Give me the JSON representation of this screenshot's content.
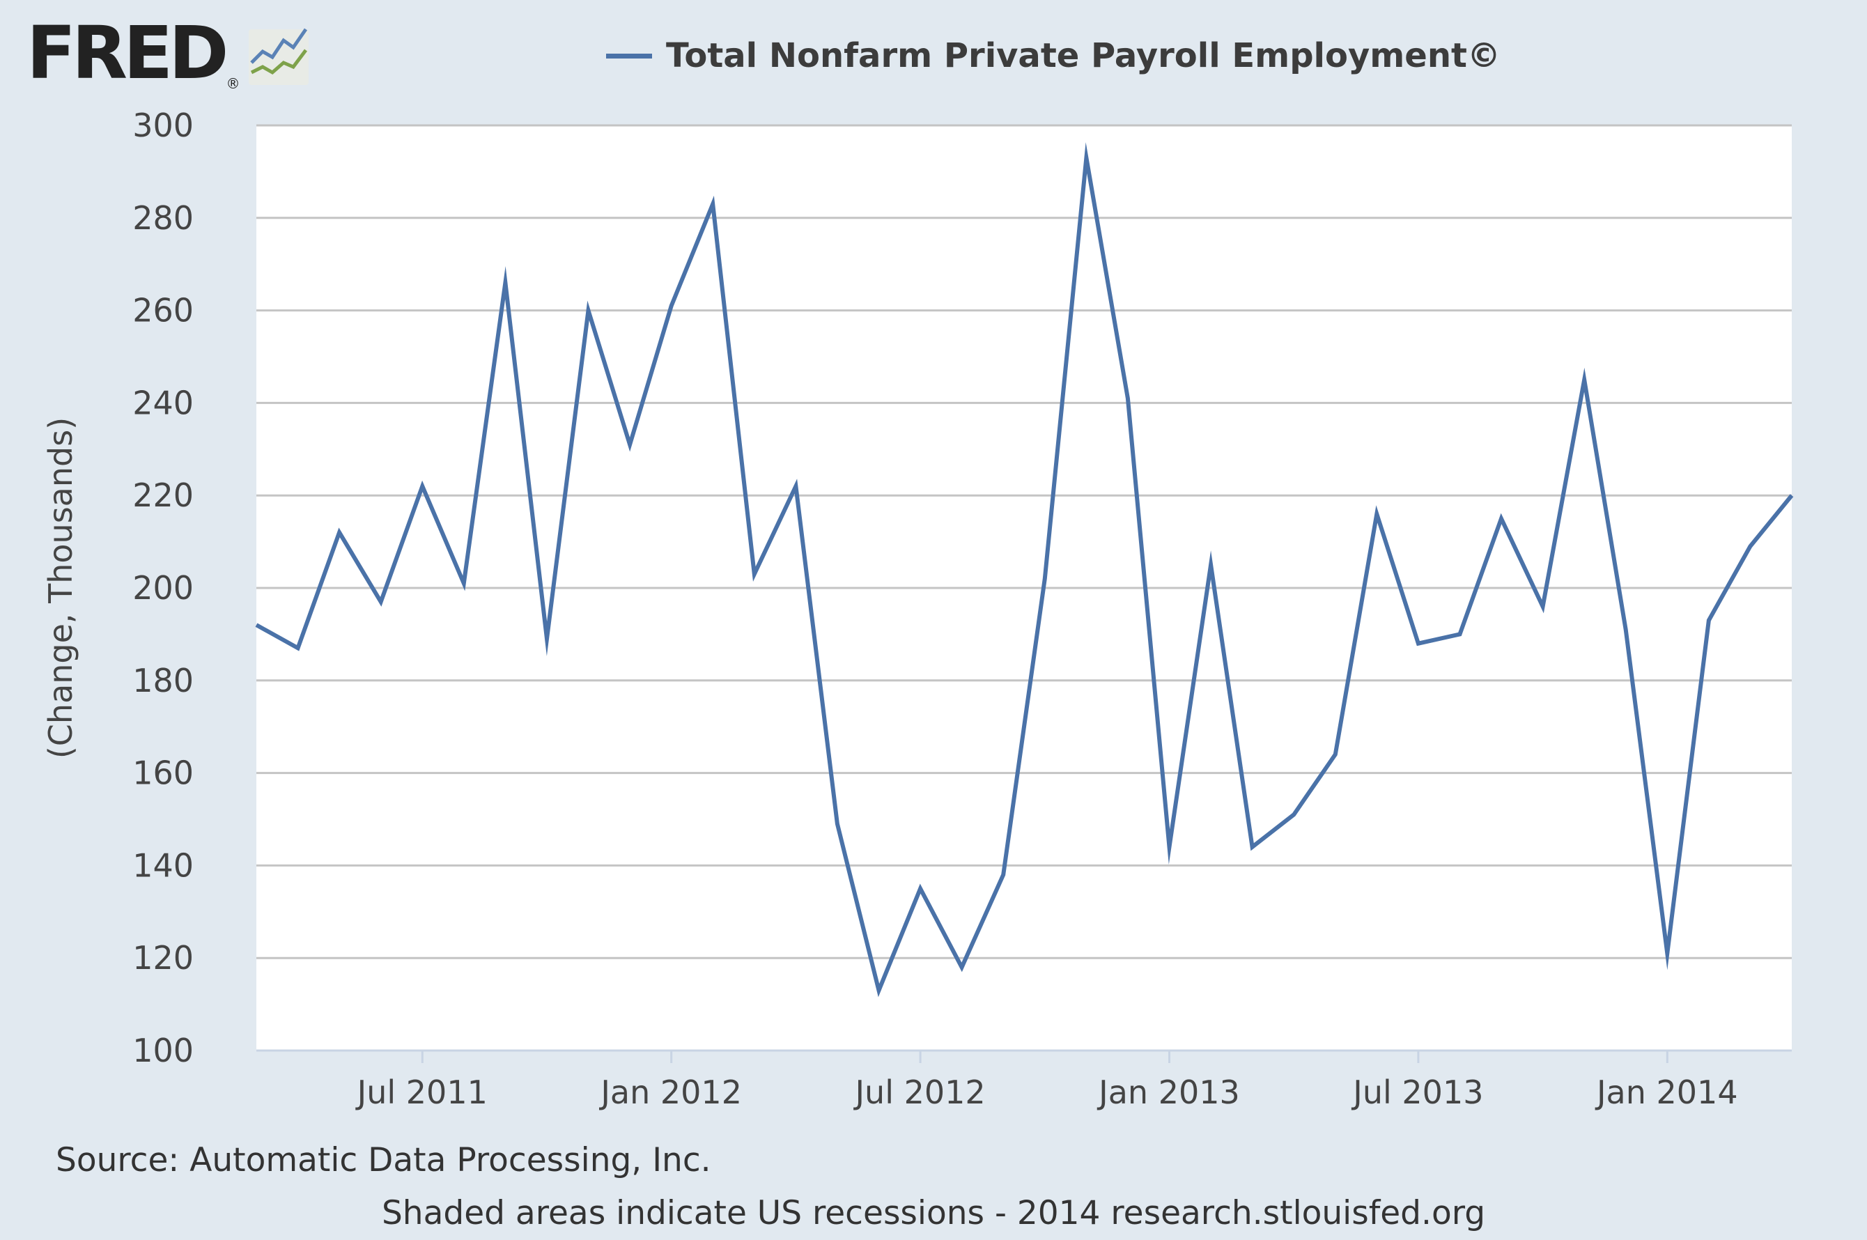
{
  "logo": {
    "text": "FRED",
    "reg": "®",
    "icon": "fred-chart-logo-icon"
  },
  "legend": {
    "label": "Total Nonfarm Private Payroll Employment©",
    "color": "#4a72a8"
  },
  "source": "Source: Automatic Data Processing, Inc.",
  "note": "Shaded areas indicate US recessions - 2014 research.stlouisfed.org",
  "chart_data": {
    "type": "line",
    "title": "Total Nonfarm Private Payroll Employment©",
    "xlabel": "",
    "ylabel": "(Change, Thousands)",
    "ylim": [
      100,
      300
    ],
    "yticks": [
      100,
      120,
      140,
      160,
      180,
      200,
      220,
      240,
      260,
      280,
      300
    ],
    "xticks": [
      "Jul 2011",
      "Jan 2012",
      "Jul 2012",
      "Jan 2013",
      "Jul 2013",
      "Jan 2014"
    ],
    "x_tick_months": [
      "2011-07",
      "2012-01",
      "2012-07",
      "2013-01",
      "2013-07",
      "2014-01"
    ],
    "grid": true,
    "legend_position": "top",
    "x": [
      "2011-03",
      "2011-04",
      "2011-05",
      "2011-06",
      "2011-07",
      "2011-08",
      "2011-09",
      "2011-10",
      "2011-11",
      "2011-12",
      "2012-01",
      "2012-02",
      "2012-03",
      "2012-04",
      "2012-05",
      "2012-06",
      "2012-07",
      "2012-08",
      "2012-09",
      "2012-10",
      "2012-11",
      "2012-12",
      "2013-01",
      "2013-02",
      "2013-03",
      "2013-04",
      "2013-05",
      "2013-06",
      "2013-07",
      "2013-08",
      "2013-09",
      "2013-10",
      "2013-11",
      "2013-12",
      "2014-01",
      "2014-02",
      "2014-03",
      "2014-04"
    ],
    "series": [
      {
        "name": "Total Nonfarm Private Payroll Employment©",
        "color": "#4a72a8",
        "values": [
          192,
          187,
          212,
          197,
          222,
          201,
          266,
          189,
          260,
          231,
          261,
          283,
          203,
          222,
          149,
          113,
          135,
          118,
          138,
          202,
          293,
          241,
          144,
          205,
          144,
          151,
          164,
          216,
          188,
          190,
          215,
          196,
          245,
          191,
          121,
          193,
          209,
          220
        ]
      }
    ]
  }
}
